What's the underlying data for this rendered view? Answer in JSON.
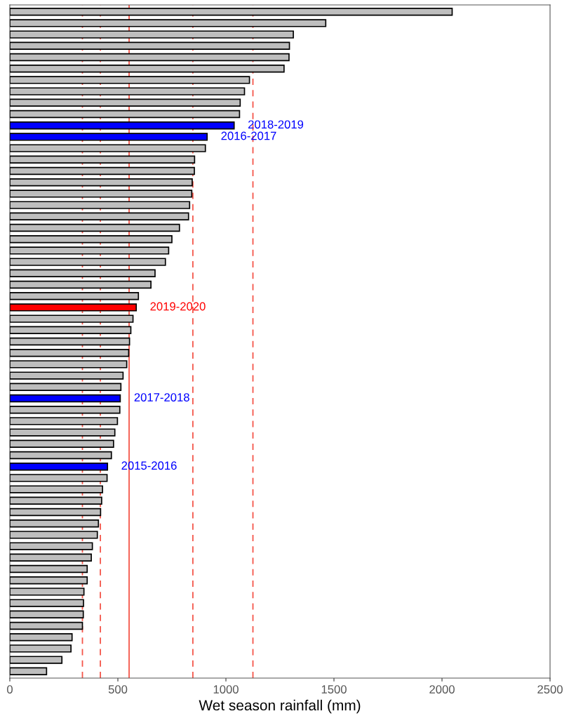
{
  "chart_data": {
    "type": "bar",
    "orientation": "horizontal",
    "xlabel": "Wet season rainfall (mm)",
    "categories": [
      null,
      null,
      null,
      null,
      null,
      null,
      null,
      null,
      null,
      null,
      null,
      null,
      null,
      null,
      null,
      null,
      null,
      null,
      null,
      null,
      null,
      null,
      null,
      null,
      null,
      null,
      null,
      null,
      null,
      null,
      null,
      null,
      null,
      null,
      null,
      null,
      null,
      null,
      null,
      null,
      null,
      null,
      null,
      null,
      null,
      null,
      null,
      null,
      null,
      null,
      null,
      null,
      null,
      null,
      null,
      null,
      null,
      null,
      null
    ],
    "values": [
      2047,
      1462,
      1312,
      1294,
      1292,
      1269,
      1109,
      1086,
      1066,
      1063,
      1038,
      913,
      905,
      855,
      854,
      844,
      842,
      832,
      827,
      785,
      750,
      735,
      720,
      672,
      653,
      595,
      585,
      570,
      560,
      554,
      550,
      541,
      524,
      514,
      511,
      509,
      498,
      486,
      480,
      470,
      452,
      450,
      429,
      425,
      420,
      410,
      405,
      382,
      377,
      358,
      358,
      343,
      341,
      340,
      336,
      288,
      283,
      241,
      170
    ],
    "colors": [
      "#bebebe",
      "#bebebe",
      "#bebebe",
      "#bebebe",
      "#bebebe",
      "#bebebe",
      "#bebebe",
      "#bebebe",
      "#bebebe",
      "#bebebe",
      "#0000ff",
      "#0000ff",
      "#bebebe",
      "#bebebe",
      "#bebebe",
      "#bebebe",
      "#bebebe",
      "#bebebe",
      "#bebebe",
      "#bebebe",
      "#bebebe",
      "#bebebe",
      "#bebebe",
      "#bebebe",
      "#bebebe",
      "#bebebe",
      "#ff0000",
      "#bebebe",
      "#bebebe",
      "#bebebe",
      "#bebebe",
      "#bebebe",
      "#bebebe",
      "#bebebe",
      "#0000ff",
      "#bebebe",
      "#bebebe",
      "#bebebe",
      "#bebebe",
      "#bebebe",
      "#0000ff",
      "#bebebe",
      "#bebebe",
      "#bebebe",
      "#bebebe",
      "#bebebe",
      "#bebebe",
      "#bebebe",
      "#bebebe",
      "#bebebe",
      "#bebebe",
      "#bebebe",
      "#bebebe",
      "#bebebe",
      "#bebebe",
      "#bebebe",
      "#bebebe",
      "#bebebe",
      "#bebebe"
    ],
    "value_labels": [
      null,
      null,
      null,
      null,
      null,
      null,
      null,
      null,
      null,
      null,
      "2018-2019",
      "2016-2017",
      null,
      null,
      null,
      null,
      null,
      null,
      null,
      null,
      null,
      null,
      null,
      null,
      null,
      null,
      "2019-2020",
      null,
      null,
      null,
      null,
      null,
      null,
      null,
      "2017-2018",
      null,
      null,
      null,
      null,
      null,
      "2015-2016",
      null,
      null,
      null,
      null,
      null,
      null,
      null,
      null,
      null,
      null,
      null,
      null,
      null,
      null,
      null,
      null,
      null,
      null
    ],
    "xlim": [
      0,
      2500
    ],
    "xticks": [
      0,
      500,
      1000,
      1500,
      2000,
      2500
    ],
    "tick_labels": "x",
    "grid": false,
    "ref_lines": [
      {
        "axis": "x",
        "value": 552,
        "color": "#f4564a",
        "line_style": "solid"
      },
      {
        "axis": "x",
        "value": 336,
        "color": "#f4564a",
        "line_style": "dashed"
      },
      {
        "axis": "x",
        "value": 419,
        "color": "#f4564a",
        "line_style": "dashed"
      },
      {
        "axis": "x",
        "value": 847,
        "color": "#f4564a",
        "line_style": "dashed"
      },
      {
        "axis": "x",
        "value": 1125,
        "color": "#f4564a",
        "line_style": "dashed"
      }
    ]
  }
}
